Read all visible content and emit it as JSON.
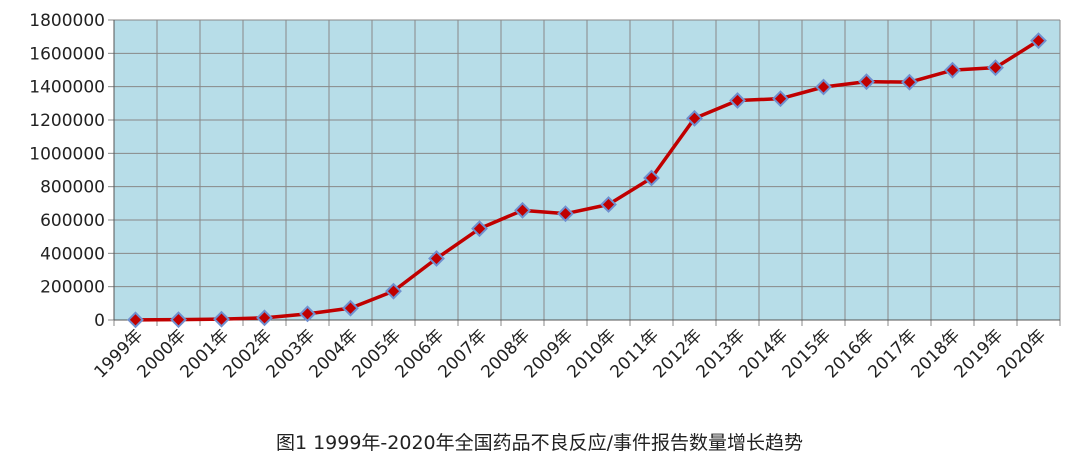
{
  "caption": "图1  1999年-2020年全国药品不良反应/事件报告数量增长趋势",
  "colors": {
    "plot_background": "#b7dde8",
    "line": "#c00000",
    "marker_fill": "#c00000",
    "marker_stroke": "#6f8fcf",
    "grid": "#888888"
  },
  "chart_data": {
    "type": "line",
    "categories": [
      "1999年",
      "2000年",
      "2001年",
      "2002年",
      "2003年",
      "2004年",
      "2005年",
      "2006年",
      "2007年",
      "2008年",
      "2009年",
      "2010年",
      "2011年",
      "2012年",
      "2013年",
      "2014年",
      "2015年",
      "2016年",
      "2017年",
      "2018年",
      "2019年",
      "2020年"
    ],
    "series": [
      {
        "values": [
          1000,
          2000,
          5000,
          13000,
          37000,
          71000,
          173000,
          369000,
          548000,
          658000,
          638000,
          693000,
          852000,
          1210000,
          1317000,
          1328000,
          1398000,
          1430000,
          1427000,
          1499000,
          1514000,
          1676000
        ]
      }
    ],
    "ylim": [
      0,
      1800000
    ],
    "yticks": [
      "0",
      "200000",
      "400000",
      "600000",
      "800000",
      "1000000",
      "1200000",
      "1400000",
      "1600000",
      "1800000"
    ],
    "grid": true,
    "legend": "none",
    "title": "",
    "xlabel": "",
    "ylabel": ""
  }
}
